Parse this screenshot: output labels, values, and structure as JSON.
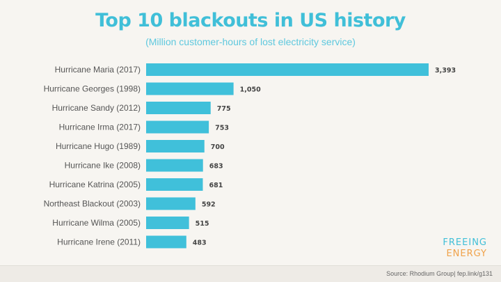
{
  "header": {
    "title": "Top 10 blackouts in US history",
    "subtitle": "(Million customer-hours of lost electricity service)"
  },
  "branding": {
    "line1": "FREEING",
    "line2": "ENERGY"
  },
  "footer": {
    "source": "Source: Rhodium Group| fep.link/g131"
  },
  "colors": {
    "bar": "#40c0da",
    "title": "#40bfd8",
    "logo_top": "#40bfd8",
    "logo_bottom": "#f0a24a"
  },
  "chart_data": {
    "type": "bar",
    "orientation": "horizontal",
    "title": "Top 10 blackouts in US history",
    "subtitle": "(Million customer-hours of lost electricity service)",
    "categories": [
      "Hurricane Maria (2017)",
      "Hurricane Georges (1998)",
      "Hurricane Sandy (2012)",
      "Hurricane Irma (2017)",
      "Hurricane Hugo (1989)",
      "Hurricane Ike (2008)",
      "Hurricane Katrina (2005)",
      "Northeast Blackout (2003)",
      "Hurricane Wilma (2005)",
      "Hurricane Irene (2011)"
    ],
    "values": [
      3393,
      1050,
      775,
      753,
      700,
      683,
      681,
      592,
      515,
      483
    ],
    "value_labels": [
      "3,393",
      "1,050",
      "775",
      "753",
      "700",
      "683",
      "681",
      "592",
      "515",
      "483"
    ],
    "xlim": [
      0,
      3393
    ],
    "grid": false,
    "legend": "none"
  }
}
